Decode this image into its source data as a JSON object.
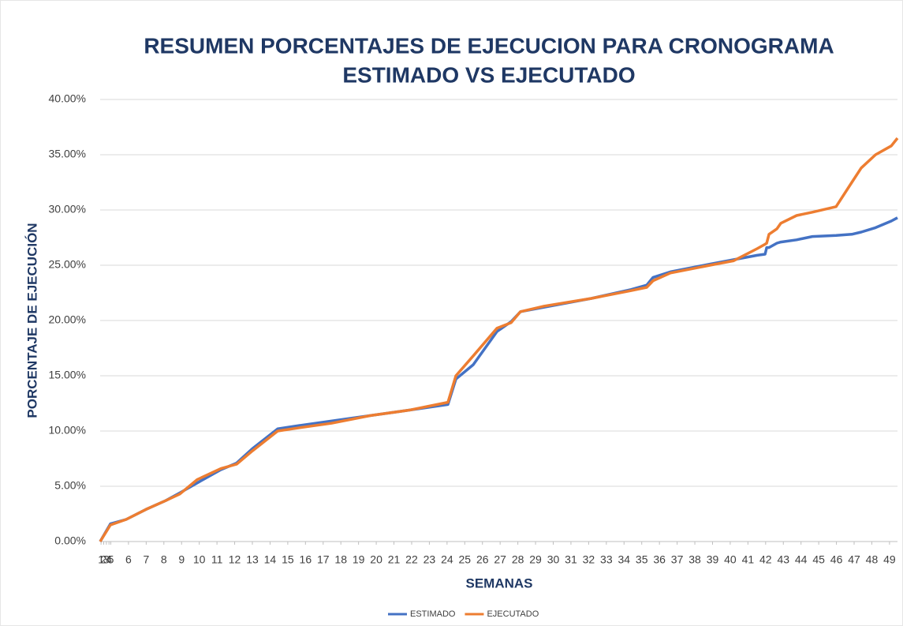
{
  "chart_data": {
    "type": "line",
    "title": [
      "RESUMEN PORCENTAJES DE EJECUCION PARA CRONOGRAMA",
      "ESTIMADO VS EJECUTADO"
    ],
    "xlabel": "SEMANAS",
    "ylabel": "PORCENTAJE DE EJECUCIÓN",
    "x": [
      0,
      0.58,
      1.47,
      2.58,
      3.7,
      4.5,
      5.48,
      6.82,
      7.71,
      8.6,
      10.03,
      11.27,
      13.06,
      15.28,
      17.51,
      19.65,
      20.1,
      21.08,
      22.42,
      23.22,
      23.75,
      25.09,
      27.76,
      29.99,
      30.88,
      31.24,
      32.22,
      34.45,
      35.78,
      37.12,
      37.57,
      37.66,
      37.79,
      38.24,
      38.46,
      39.35,
      40.24,
      41.58,
      42.47,
      43.0,
      43.81,
      44.7,
      45.05
    ],
    "series": [
      {
        "name": "ESTIMADO",
        "color": "#4472c4",
        "values": [
          0,
          1.6,
          2.0,
          2.9,
          3.7,
          4.4,
          5.3,
          6.5,
          7.1,
          8.4,
          10.2,
          10.5,
          10.9,
          11.4,
          11.9,
          12.4,
          14.7,
          16.0,
          19.0,
          19.9,
          20.8,
          21.2,
          22.0,
          22.8,
          23.2,
          23.9,
          24.4,
          25.1,
          25.5,
          25.9,
          26.0,
          26.6,
          26.6,
          27.0,
          27.1,
          27.3,
          27.6,
          27.7,
          27.8,
          28.0,
          28.4,
          29.0,
          29.3
        ]
      },
      {
        "name": "EJECUTADO",
        "color": "#ed7d31",
        "values": [
          0,
          1.5,
          2.0,
          2.9,
          3.7,
          4.3,
          5.6,
          6.6,
          7.0,
          8.2,
          10.0,
          10.3,
          10.7,
          11.4,
          11.9,
          12.6,
          15.0,
          16.8,
          19.3,
          19.8,
          20.8,
          21.3,
          22.0,
          22.7,
          23.0,
          23.6,
          24.3,
          25.0,
          25.4,
          26.5,
          26.9,
          27.0,
          27.8,
          28.3,
          28.8,
          29.5,
          29.8,
          30.3,
          32.5,
          33.8,
          35.0,
          35.8,
          36.5
        ]
      }
    ],
    "xlim": [
      0,
      45.05
    ],
    "xticks": [
      {
        "value": 0.05,
        "label": "1"
      },
      {
        "value": 0.2,
        "label": "2"
      },
      {
        "value": 0.35,
        "label": "3"
      },
      {
        "value": 0.5,
        "label": "4"
      },
      {
        "value": 0.6,
        "label": "5"
      },
      {
        "value": 1.6,
        "label": "6"
      },
      {
        "value": 2.6,
        "label": "7"
      },
      {
        "value": 3.6,
        "label": "8"
      },
      {
        "value": 4.6,
        "label": "9"
      },
      {
        "value": 5.6,
        "label": "10"
      },
      {
        "value": 6.6,
        "label": "11"
      },
      {
        "value": 7.6,
        "label": "12"
      },
      {
        "value": 8.6,
        "label": "13"
      },
      {
        "value": 9.6,
        "label": "14"
      },
      {
        "value": 10.6,
        "label": "15"
      },
      {
        "value": 11.6,
        "label": "16"
      },
      {
        "value": 12.6,
        "label": "17"
      },
      {
        "value": 13.6,
        "label": "18"
      },
      {
        "value": 14.6,
        "label": "19"
      },
      {
        "value": 15.6,
        "label": "20"
      },
      {
        "value": 16.6,
        "label": "21"
      },
      {
        "value": 17.6,
        "label": "22"
      },
      {
        "value": 18.6,
        "label": "23"
      },
      {
        "value": 19.6,
        "label": "24"
      },
      {
        "value": 20.6,
        "label": "25"
      },
      {
        "value": 21.6,
        "label": "26"
      },
      {
        "value": 22.6,
        "label": "27"
      },
      {
        "value": 23.6,
        "label": "28"
      },
      {
        "value": 24.6,
        "label": "29"
      },
      {
        "value": 25.6,
        "label": "30"
      },
      {
        "value": 26.6,
        "label": "31"
      },
      {
        "value": 27.6,
        "label": "32"
      },
      {
        "value": 28.6,
        "label": "33"
      },
      {
        "value": 29.6,
        "label": "34"
      },
      {
        "value": 30.6,
        "label": "35"
      },
      {
        "value": 31.6,
        "label": "36"
      },
      {
        "value": 32.6,
        "label": "37"
      },
      {
        "value": 33.6,
        "label": "38"
      },
      {
        "value": 34.6,
        "label": "39"
      },
      {
        "value": 35.6,
        "label": "40"
      },
      {
        "value": 36.6,
        "label": "41"
      },
      {
        "value": 37.6,
        "label": "42"
      },
      {
        "value": 38.6,
        "label": "43"
      },
      {
        "value": 39.6,
        "label": "44"
      },
      {
        "value": 40.6,
        "label": "45"
      },
      {
        "value": 41.6,
        "label": "46"
      },
      {
        "value": 42.6,
        "label": "47"
      },
      {
        "value": 43.6,
        "label": "48"
      },
      {
        "value": 44.6,
        "label": "49"
      }
    ],
    "ylim": [
      0,
      40
    ],
    "yticks": [
      {
        "value": 0,
        "label": "0.00%"
      },
      {
        "value": 5,
        "label": "5.00%"
      },
      {
        "value": 10,
        "label": "10.00%"
      },
      {
        "value": 15,
        "label": "15.00%"
      },
      {
        "value": 20,
        "label": "20.00%"
      },
      {
        "value": 25,
        "label": "25.00%"
      },
      {
        "value": 30,
        "label": "30.00%"
      },
      {
        "value": 35,
        "label": "35.00%"
      },
      {
        "value": 40,
        "label": "40.00%"
      }
    ],
    "grid": true,
    "legend": "bottom"
  }
}
